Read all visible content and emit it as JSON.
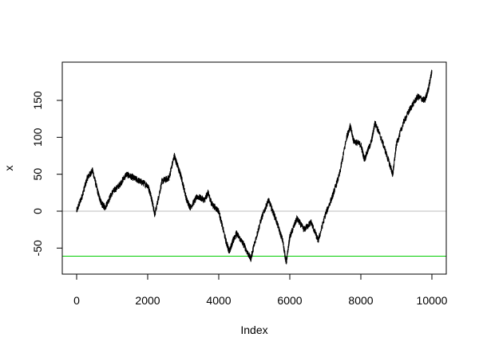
{
  "chart_data": {
    "type": "line",
    "title": "",
    "xlabel": "Index",
    "ylabel": "x",
    "xlim": [
      0,
      10000
    ],
    "ylim": [
      -85,
      195
    ],
    "x_ticks": [
      0,
      2000,
      4000,
      6000,
      8000,
      10000
    ],
    "x_tick_labels": [
      "0",
      "2000",
      "4000",
      "6000",
      "8000",
      "10000"
    ],
    "y_ticks": [
      -50,
      0,
      50,
      100,
      150
    ],
    "y_tick_labels": [
      "-50",
      "0",
      "50",
      "100",
      "150"
    ],
    "grid": false,
    "colors": {
      "series": "#000000",
      "zero_line": "#bebebe",
      "min_line": "#00cc00"
    },
    "series": [
      {
        "x": [
          0,
          150,
          300,
          450,
          600,
          700,
          800,
          1000,
          1200,
          1400,
          1600,
          1800,
          2000,
          2100,
          2200,
          2400,
          2600,
          2750,
          2850,
          2950,
          3100,
          3200,
          3400,
          3600,
          3700,
          3800,
          4000,
          4200,
          4300,
          4400,
          4500,
          4700,
          4900,
          5000,
          5200,
          5400,
          5600,
          5800,
          5900,
          6000,
          6200,
          6400,
          6600,
          6800,
          7000,
          7200,
          7400,
          7600,
          7700,
          7800,
          8000,
          8100,
          8300,
          8400,
          8600,
          8800,
          8900,
          9000,
          9200,
          9400,
          9600,
          9800,
          9900,
          10000
        ],
        "values": [
          0,
          20,
          45,
          55,
          25,
          10,
          5,
          25,
          35,
          50,
          45,
          40,
          35,
          20,
          -5,
          40,
          45,
          75,
          60,
          45,
          15,
          5,
          20,
          15,
          25,
          10,
          0,
          -40,
          -55,
          -40,
          -30,
          -45,
          -65,
          -45,
          -10,
          15,
          -10,
          -40,
          -70,
          -35,
          -10,
          -25,
          -15,
          -40,
          -5,
          20,
          50,
          100,
          115,
          95,
          90,
          70,
          95,
          120,
          95,
          65,
          50,
          90,
          120,
          140,
          155,
          150,
          165,
          190
        ]
      }
    ],
    "hlines": [
      {
        "y": 0
      },
      {
        "y": -61
      }
    ]
  }
}
